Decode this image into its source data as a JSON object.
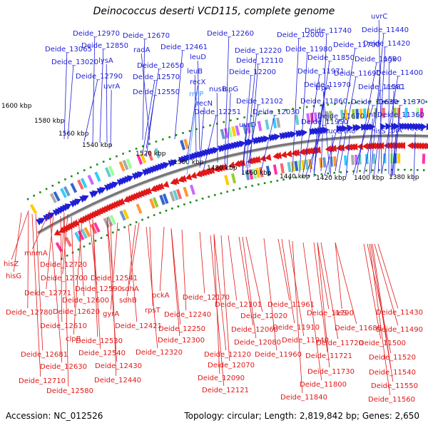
{
  "title": "Deinococcus deserti VCD115, complete genome",
  "accession": "Accession: NC_012526",
  "summary": "Topology: circular; Length: 2,819,842 bp; Genes: 2,650",
  "colors": {
    "forward": "#1f1fd6",
    "reverse": "#e01818",
    "rna": "#33a0ff",
    "axis": "#888888",
    "tick": "#1a8a1a"
  },
  "ticks": [
    "1600 kbp",
    "1580 kbp",
    "1560 kbp",
    "1540 kbp",
    "1520 kbp",
    "1500 kbp",
    "1480 kbp",
    "1460 kbp",
    "1440 kbp",
    "1420 kbp",
    "1400 kbp",
    "1380 kbp"
  ],
  "top_labels": [
    "Deide_12970",
    "Deide_12670",
    "Deide_13065",
    "Deide_12850",
    "radA",
    "Deide_12461",
    "Deide_12260",
    "Deide_12000",
    "Deide_11740",
    "Deide_11440",
    "lysA",
    "Deide_13020",
    "Deide_12650",
    "leuD",
    "Deide_12220",
    "Deide_11980",
    "Deide_11700",
    "Deide_11420",
    "uvrC",
    "Deide_12790",
    "Deide_12570",
    "leuB",
    "Deide_12110",
    "Deide_11850",
    "Deide_11590",
    "pgk",
    "uvrA",
    "Deide_12550",
    "recX",
    "nusB",
    "Deide_12200",
    "Deide_11971",
    "Deide_11690",
    "Deide_11400",
    "rrnP",
    "ispG",
    "Deide_11970",
    "trpA",
    "Deide_11581",
    "asnC",
    "recN",
    "Deide_12102",
    "Deide_11860",
    "Deide_11630",
    "Deide_11370",
    "Deide_12251",
    "Deide_12030",
    "Deide_11670",
    "lnt",
    "Deide_11360",
    "uvrD",
    "Deide_11950",
    "upp",
    "sucC",
    "rho",
    "hisS",
    "tpiA",
    "recQ"
  ],
  "bottom_labels": [
    "mnmA",
    "hisZ",
    "Deide_12720",
    "hisG",
    "Deide_12700",
    "Deide_12541",
    "Deide_12771",
    "Deide_12590",
    "sdhA",
    "Deide_12600",
    "sdhB",
    "Deide_12780",
    "Deide_12620",
    "gyrA",
    "pckA",
    "Deide_12170",
    "Deide_12101",
    "Deide_11961",
    "Deide_11790",
    "ileS",
    "Deide_11430",
    "Deide_12610",
    "clpB",
    "rpsT",
    "Deide_12240",
    "Deide_12020",
    "Deide_11910",
    "Deide_11680",
    "Deide_12421",
    "Deide_12530",
    "Deide_12250",
    "Deide_12060",
    "Deide_11490",
    "Deide_12300",
    "Deide_12080",
    "Deide_11940",
    "Deide_11720",
    "Deide_11500",
    "Deide_12681",
    "Deide_12540",
    "Deide_12320",
    "Deide_12120",
    "Deide_11960",
    "Deide_11721",
    "Deide_11520",
    "Deide_12630",
    "Deide_12430",
    "Deide_12070",
    "Deide_11730",
    "Deide_11540",
    "Deide_12710",
    "Deide_12440",
    "Deide_12090",
    "Deide_11800",
    "Deide_11550",
    "Deide_12580",
    "Deide_12121",
    "Deide_11840",
    "Deide_11560"
  ]
}
